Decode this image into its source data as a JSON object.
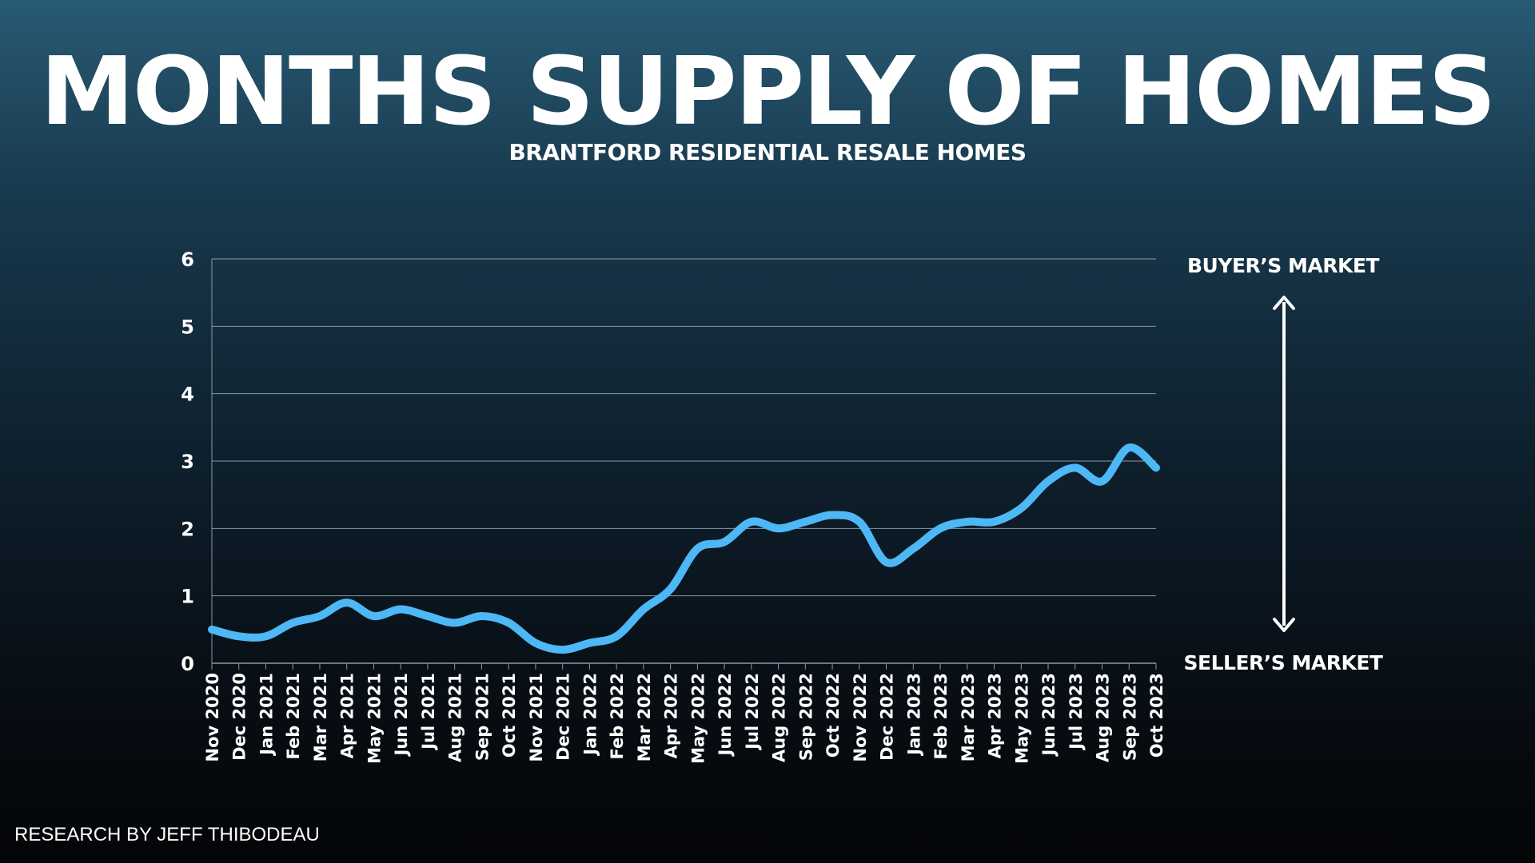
{
  "title": "MONTHS SUPPLY OF HOMES",
  "subtitle": "BRANTFORD RESIDENTIAL RESALE HOMES",
  "credit": "RESEARCH BY JEFF THIBODEAU",
  "annotations": {
    "top": "BUYER’S MARKET",
    "bottom": "SELLER’S MARKET"
  },
  "colors": {
    "line": "#4db8f5",
    "grid": "#8a9aa6",
    "text": "#ffffff"
  },
  "chart_data": {
    "type": "line",
    "ylim": [
      0,
      6
    ],
    "yticks": [
      0,
      1,
      2,
      3,
      4,
      5,
      6
    ],
    "grid": true,
    "categories": [
      "Nov 2020",
      "Dec 2020",
      "Jan 2021",
      "Feb 2021",
      "Mar 2021",
      "Apr 2021",
      "May 2021",
      "Jun 2021",
      "Jul 2021",
      "Aug 2021",
      "Sep 2021",
      "Oct 2021",
      "Nov 2021",
      "Dec 2021",
      "Jan 2022",
      "Feb 2022",
      "Mar 2022",
      "Apr 2022",
      "May 2022",
      "Jun 2022",
      "Jul 2022",
      "Aug 2022",
      "Sep 2022",
      "Oct 2022",
      "Nov 2022",
      "Dec 2022",
      "Jan 2023",
      "Feb 2023",
      "Mar 2023",
      "Apr 2023",
      "May 2023",
      "Jun 2023",
      "Jul 2023",
      "Aug 2023",
      "Sep 2023",
      "Oct 2023"
    ],
    "series": [
      {
        "values": [
          0.5,
          0.4,
          0.4,
          0.6,
          0.7,
          0.9,
          0.7,
          0.8,
          0.7,
          0.6,
          0.7,
          0.6,
          0.3,
          0.2,
          0.3,
          0.4,
          0.8,
          1.1,
          1.7,
          1.8,
          2.1,
          2.0,
          2.1,
          2.2,
          2.1,
          1.5,
          1.7,
          2.0,
          2.1,
          2.1,
          2.3,
          2.7,
          2.9,
          2.7,
          3.2,
          2.9
        ]
      }
    ]
  }
}
